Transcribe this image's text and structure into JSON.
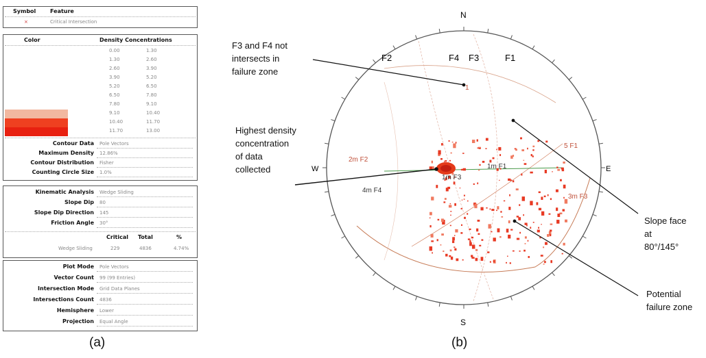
{
  "panel_a": {
    "header": {
      "symbol": "Symbol",
      "feature": "Feature",
      "entry_symbol": "×",
      "entry_feature": "Critical Intersection"
    },
    "density": {
      "color_header": "Color",
      "title": "Density Concentrations",
      "rows": [
        [
          "0.00",
          "1.30"
        ],
        [
          "1.30",
          "2.60"
        ],
        [
          "2.60",
          "3.90"
        ],
        [
          "3.90",
          "5.20"
        ],
        [
          "5.20",
          "6.50"
        ],
        [
          "6.50",
          "7.80"
        ],
        [
          "7.80",
          "9.10"
        ],
        [
          "9.10",
          "10.40"
        ],
        [
          "10.40",
          "11.70"
        ],
        [
          "11.70",
          "13.00"
        ]
      ],
      "swatch_colors": [
        "#ffffff",
        "#ffffff",
        "#ffffff",
        "#ffffff",
        "#ffffff",
        "#ffffff",
        "#ffffff",
        "#f2b8a0",
        "#ef4020",
        "#e82010"
      ]
    },
    "contour": [
      {
        "label": "Contour Data",
        "value": "Pole Vectors"
      },
      {
        "label": "Maximum Density",
        "value": "12.86%"
      },
      {
        "label": "Contour Distribution",
        "value": "Fisher"
      },
      {
        "label": "Counting Circle Size",
        "value": "1.0%"
      }
    ],
    "kinematic": [
      {
        "label": "Kinematic Analysis",
        "value": "Wedge Sliding"
      },
      {
        "label": "Slope Dip",
        "value": "80"
      },
      {
        "label": "Slope Dip Direction",
        "value": "145"
      },
      {
        "label": "Friction Angle",
        "value": "30°"
      }
    ],
    "critical_table": {
      "headers": [
        "Critical",
        "Total",
        "%"
      ],
      "row_label": "Wedge Sliding",
      "values": [
        "229",
        "4836",
        "4.74%"
      ]
    },
    "plot": [
      {
        "label": "Plot Mode",
        "value": "Pole Vectors"
      },
      {
        "label": "Vector Count",
        "value": "99 (99 Entries)"
      },
      {
        "label": "Intersection Mode",
        "value": "Grid Data Planes"
      },
      {
        "label": "Intersections Count",
        "value": "4836"
      },
      {
        "label": "Hemisphere",
        "value": "Lower"
      },
      {
        "label": "Projection",
        "value": "Equal Angle"
      }
    ],
    "caption": "(a)"
  },
  "panel_b": {
    "caption": "(b)",
    "compass": {
      "n": "N",
      "s": "S",
      "e": "E",
      "w": "W"
    },
    "set_labels": [
      "F2",
      "F4",
      "F3",
      "F1"
    ],
    "plot_labels": [
      "2m F2",
      "4m F4",
      "1m F3",
      "1m F1",
      "3m F3",
      "5 F1",
      "1"
    ],
    "annotations": {
      "f3f4": [
        "F3 and F4 not",
        "intersects in",
        "failure zone"
      ],
      "density": [
        "Highest density",
        "concentration",
        "of data",
        "collected"
      ],
      "slope": [
        "Slope face",
        "at",
        "80°/145°"
      ],
      "failure": [
        "Potential",
        "failure zone"
      ]
    }
  }
}
